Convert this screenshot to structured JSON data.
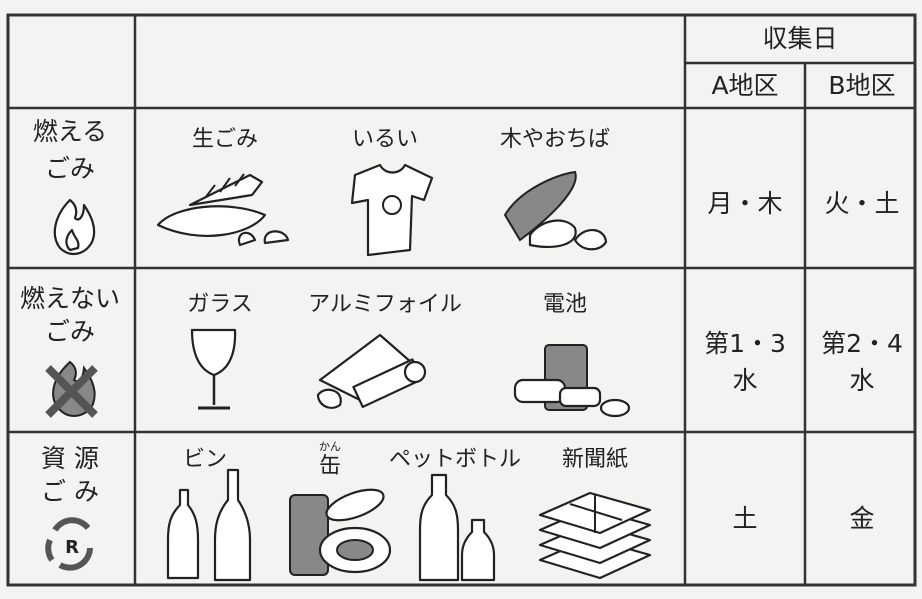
{
  "header": {
    "schedule_title": "収集日",
    "districts": [
      "A地区",
      "B地区"
    ]
  },
  "rows": [
    {
      "category": [
        "燃える",
        "ごみ"
      ],
      "items": [
        {
          "label": "生ごみ"
        },
        {
          "label": "いるい"
        },
        {
          "label": "木やおちば"
        }
      ],
      "district_a": [
        "月・木"
      ],
      "district_b": [
        "火・土"
      ]
    },
    {
      "category": [
        "燃えない",
        "ごみ"
      ],
      "items": [
        {
          "label": "ガラス"
        },
        {
          "label": "アルミフォイル"
        },
        {
          "label": "電池"
        }
      ],
      "district_a": [
        "第1・3",
        "水"
      ],
      "district_b": [
        "第2・4",
        "水"
      ]
    },
    {
      "category": [
        "資 源",
        "ご み"
      ],
      "items": [
        {
          "label": "ビン"
        },
        {
          "label": "缶",
          "ruby": "かん"
        },
        {
          "label": "ペットボトル"
        },
        {
          "label": "新聞紙"
        }
      ],
      "district_a": [
        "土"
      ],
      "district_b": [
        "金"
      ]
    }
  ]
}
